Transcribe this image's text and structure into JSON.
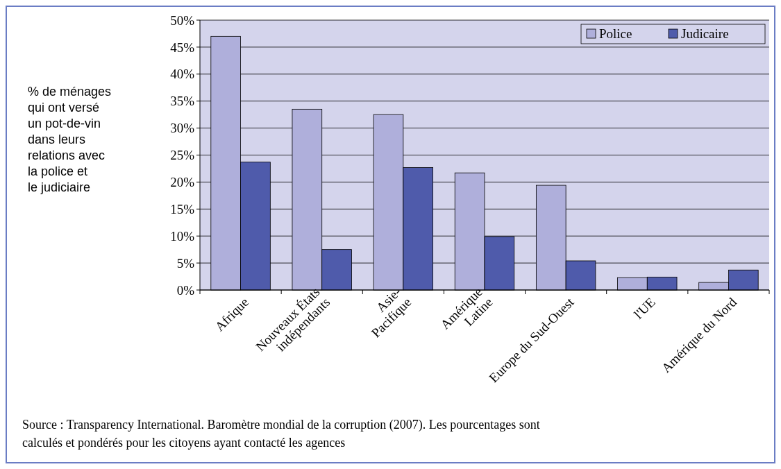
{
  "chart_data": {
    "type": "bar",
    "ylabel": "% de ménages qui ont versé un pot-de-vin dans leurs relations avec la police et le judiciaire",
    "categories": [
      "Afrique",
      "Nouveaux États\nindépendants",
      "Asie-\nPacifique",
      "Amérique\nLatine",
      "Europe du Sud-Ouest",
      "l'UE",
      "Amérique du Nord"
    ],
    "series": [
      {
        "name": "Police",
        "color": "#afafdb",
        "values": [
          47,
          33.5,
          32.5,
          21.7,
          19.4,
          2.3,
          1.4
        ]
      },
      {
        "name": "Judicaire",
        "color": "#4f5bab",
        "values": [
          23.7,
          7.5,
          22.7,
          9.9,
          5.4,
          2.4,
          3.7
        ]
      }
    ],
    "ylim": [
      0,
      50
    ],
    "yticks": [
      {
        "value": 0,
        "label": "0%"
      },
      {
        "value": 5,
        "label": "5%"
      },
      {
        "value": 10,
        "label": "10%"
      },
      {
        "value": 15,
        "label": "15%"
      },
      {
        "value": 20,
        "label": "20%"
      },
      {
        "value": 25,
        "label": "25%"
      },
      {
        "value": 30,
        "label": "30%"
      },
      {
        "value": 35,
        "label": "35%"
      },
      {
        "value": 40,
        "label": "40%"
      },
      {
        "value": 45,
        "label": "45%"
      },
      {
        "value": 50,
        "label": "50%"
      }
    ],
    "grid": "y",
    "legend": "top right",
    "annotations": [
      "Source : Transparency International. Baromètre mondial de la corruption (2007). Les pourcentages sont calculés et pondérés pour les citoyens ayant contacté les agences"
    ]
  }
}
